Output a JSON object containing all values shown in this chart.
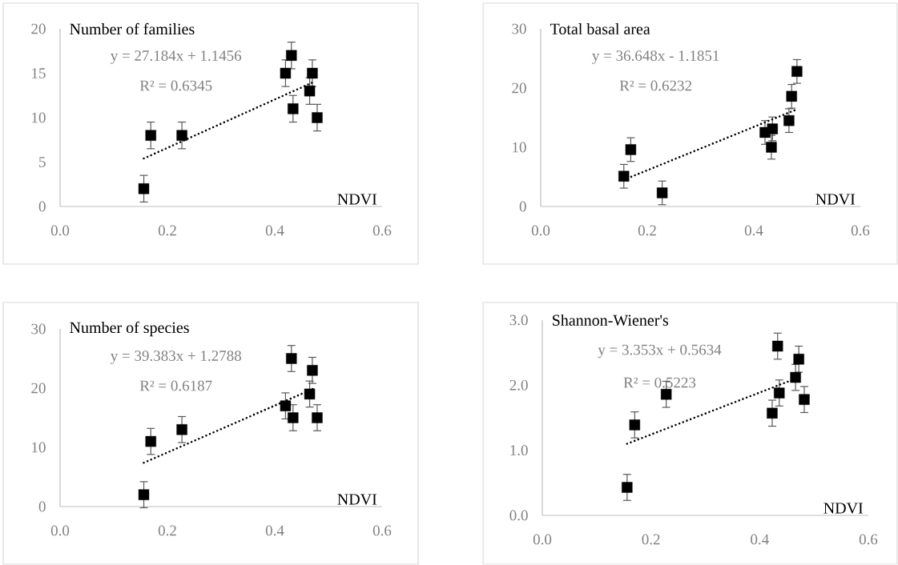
{
  "chart_data": [
    {
      "type": "scatter",
      "title": "Number of families",
      "xlabel": "NDVI",
      "annotations": [
        "y = 27.184x + 1.1456",
        "R² = 0.6345"
      ],
      "xlim": [
        0,
        0.6
      ],
      "xticks": [
        {
          "value": 0,
          "label": "0.0"
        },
        {
          "value": 0.2,
          "label": "0.2"
        },
        {
          "value": 0.4,
          "label": "0.4"
        },
        {
          "value": 0.6,
          "label": "0.6"
        }
      ],
      "ylim": [
        0,
        20
      ],
      "yticks": [
        0,
        5,
        10,
        15,
        20
      ],
      "series": [
        {
          "type": "scatter",
          "marker": "square",
          "color": "#000000",
          "x": [
            0.156,
            0.169,
            0.227,
            0.42,
            0.431,
            0.434,
            0.465,
            0.47,
            0.479
          ],
          "values": [
            2,
            8,
            8,
            15,
            17,
            11,
            13,
            15,
            10
          ],
          "errors": [
            1.5,
            1.5,
            1.5,
            1.5,
            1.5,
            1.5,
            1.5,
            1.5,
            1.5
          ]
        },
        {
          "type": "line",
          "line_style": "dotted",
          "marker": "none",
          "color": "#000000",
          "x": [
            0.156,
            0.472
          ],
          "values": [
            5.4,
            14.0
          ]
        }
      ]
    },
    {
      "type": "scatter",
      "title": "Total basal area",
      "xlabel": "NDVI",
      "annotations": [
        "y = 36.648x - 1.1851",
        "R² = 0.6232"
      ],
      "xlim": [
        0,
        0.6
      ],
      "xticks": [
        {
          "value": 0,
          "label": "0.0"
        },
        {
          "value": 0.2,
          "label": "0.2"
        },
        {
          "value": 0.4,
          "label": "0.4"
        },
        {
          "value": 0.6,
          "label": "0.6"
        }
      ],
      "ylim": [
        0,
        30
      ],
      "yticks": [
        0,
        10,
        20,
        30
      ],
      "series": [
        {
          "type": "scatter",
          "marker": "square",
          "color": "#000000",
          "x": [
            0.156,
            0.169,
            0.228,
            0.421,
            0.433,
            0.435,
            0.466,
            0.471,
            0.481
          ],
          "values": [
            5.1,
            9.6,
            2.3,
            12.5,
            10.0,
            13.1,
            14.5,
            18.6,
            22.8
          ],
          "errors": [
            2,
            2,
            2,
            2,
            2,
            2,
            2,
            2,
            2
          ]
        },
        {
          "type": "line",
          "line_style": "dotted",
          "marker": "none",
          "color": "#000000",
          "x": [
            0.156,
            0.481
          ],
          "values": [
            4.5,
            16.4
          ]
        }
      ]
    },
    {
      "type": "scatter",
      "title": "Number of species",
      "xlabel": "NDVI",
      "annotations": [
        "y = 39.383x + 1.2788",
        "R² = 0.6187"
      ],
      "xlim": [
        0,
        0.6
      ],
      "xticks": [
        {
          "value": 0,
          "label": "0.0"
        },
        {
          "value": 0.2,
          "label": "0.2"
        },
        {
          "value": 0.4,
          "label": "0.4"
        },
        {
          "value": 0.6,
          "label": "0.6"
        }
      ],
      "ylim": [
        0,
        30
      ],
      "yticks": [
        0,
        10,
        20,
        30
      ],
      "series": [
        {
          "type": "scatter",
          "marker": "square",
          "color": "#000000",
          "x": [
            0.156,
            0.169,
            0.227,
            0.42,
            0.431,
            0.434,
            0.465,
            0.47,
            0.479
          ],
          "values": [
            2,
            11,
            13,
            17,
            25,
            15,
            19,
            23,
            15
          ],
          "errors": [
            2.2,
            2.2,
            2.2,
            2.2,
            2.2,
            2.2,
            2.2,
            2.2,
            2.2
          ]
        },
        {
          "type": "line",
          "line_style": "dotted",
          "marker": "none",
          "color": "#000000",
          "x": [
            0.156,
            0.472
          ],
          "values": [
            7.4,
            19.9
          ]
        }
      ]
    },
    {
      "type": "scatter",
      "title": "Shannon-Wiener's",
      "xlabel": "NDVI",
      "annotations": [
        "y = 3.353x + 0.5634",
        "R² = 0.5223"
      ],
      "xlim": [
        0,
        0.6
      ],
      "xticks": [
        {
          "value": 0,
          "label": "0.0"
        },
        {
          "value": 0.2,
          "label": "0.2"
        },
        {
          "value": 0.4,
          "label": "0.4"
        },
        {
          "value": 0.6,
          "label": "0.6"
        }
      ],
      "ylim": [
        0,
        3
      ],
      "yticks": [
        {
          "value": 0,
          "label": "0.0"
        },
        {
          "value": 1,
          "label": "1.0"
        },
        {
          "value": 2,
          "label": "2.0"
        },
        {
          "value": 3,
          "label": "3.0"
        }
      ],
      "series": [
        {
          "type": "scatter",
          "marker": "square",
          "color": "#000000",
          "x": [
            0.156,
            0.17,
            0.228,
            0.423,
            0.433,
            0.436,
            0.466,
            0.472,
            0.482
          ],
          "values": [
            0.43,
            1.39,
            1.86,
            1.57,
            2.6,
            1.88,
            2.12,
            2.4,
            1.78
          ],
          "errors": [
            0.2,
            0.2,
            0.2,
            0.2,
            0.2,
            0.2,
            0.2,
            0.2,
            0.2
          ]
        },
        {
          "type": "line",
          "line_style": "dotted",
          "marker": "none",
          "color": "#000000",
          "x": [
            0.156,
            0.466
          ],
          "values": [
            1.1,
            2.1
          ]
        }
      ]
    }
  ]
}
